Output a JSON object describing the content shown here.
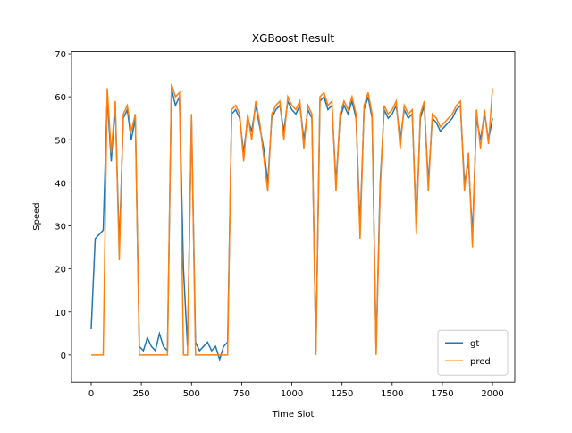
{
  "chart_data": {
    "type": "line",
    "title": "XGBoost Result",
    "x_label": "Time Slot",
    "y_label": "Speed",
    "x": [
      0,
      20,
      40,
      60,
      80,
      100,
      120,
      140,
      160,
      180,
      200,
      220,
      240,
      260,
      280,
      300,
      320,
      340,
      360,
      380,
      400,
      420,
      440,
      460,
      480,
      500,
      520,
      540,
      560,
      580,
      600,
      620,
      640,
      660,
      680,
      700,
      720,
      740,
      760,
      780,
      800,
      820,
      840,
      860,
      880,
      900,
      920,
      940,
      960,
      980,
      1000,
      1020,
      1040,
      1060,
      1080,
      1100,
      1120,
      1140,
      1160,
      1180,
      1200,
      1220,
      1240,
      1260,
      1280,
      1300,
      1320,
      1340,
      1360,
      1380,
      1400,
      1420,
      1440,
      1460,
      1480,
      1500,
      1520,
      1540,
      1560,
      1580,
      1600,
      1620,
      1640,
      1660,
      1680,
      1700,
      1720,
      1740,
      1760,
      1780,
      1800,
      1820,
      1840,
      1860,
      1880,
      1900,
      1920,
      1940,
      1960,
      1980,
      2000
    ],
    "series": [
      {
        "name": "gt",
        "color": "#1f77b4",
        "values": [
          6,
          27,
          28,
          29,
          60,
          45,
          58,
          25,
          55,
          57,
          50,
          55,
          2,
          1,
          4,
          2,
          1,
          5,
          2,
          1,
          62,
          58,
          60,
          20,
          2,
          55,
          3,
          1,
          2,
          3,
          1,
          2,
          -1,
          2,
          3,
          56,
          57,
          55,
          47,
          55,
          52,
          58,
          53,
          48,
          40,
          55,
          57,
          58,
          52,
          59,
          57,
          56,
          58,
          50,
          57,
          55,
          1,
          59,
          60,
          57,
          58,
          40,
          55,
          58,
          56,
          59,
          55,
          30,
          57,
          60,
          55,
          1,
          40,
          57,
          55,
          56,
          58,
          50,
          57,
          55,
          56,
          30,
          55,
          58,
          40,
          55,
          54,
          52,
          53,
          54,
          55,
          57,
          58,
          40,
          45,
          28,
          55,
          50,
          56,
          50,
          55
        ]
      },
      {
        "name": "pred",
        "color": "#ff7f0e",
        "values": [
          0,
          0,
          0,
          0,
          62,
          47,
          59,
          22,
          56,
          58,
          52,
          56,
          0,
          0,
          0,
          0,
          0,
          0,
          0,
          0,
          63,
          60,
          61,
          0,
          0,
          56,
          0,
          0,
          0,
          0,
          0,
          0,
          0,
          0,
          0,
          57,
          58,
          56,
          45,
          56,
          50,
          59,
          54,
          46,
          38,
          56,
          58,
          59,
          50,
          60,
          58,
          57,
          59,
          48,
          58,
          56,
          0,
          60,
          61,
          58,
          59,
          38,
          56,
          59,
          57,
          60,
          56,
          27,
          58,
          61,
          56,
          0,
          38,
          58,
          56,
          57,
          59,
          48,
          58,
          56,
          57,
          28,
          56,
          59,
          38,
          56,
          55,
          53,
          54,
          55,
          56,
          58,
          59,
          38,
          47,
          25,
          57,
          48,
          57,
          49,
          62
        ]
      }
    ],
    "xlim": [
      -98,
      2111
    ],
    "ylim": [
      -6.3,
      70.5
    ],
    "xticks": [
      0,
      250,
      500,
      750,
      1000,
      1250,
      1500,
      1750,
      2000
    ],
    "yticks": [
      0,
      10,
      20,
      30,
      40,
      50,
      60,
      70
    ],
    "legend": "lower right"
  }
}
